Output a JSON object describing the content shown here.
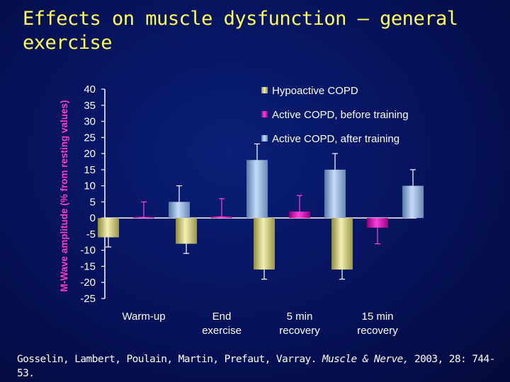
{
  "slide": {
    "title": "Effects on muscle dysfunction – general exercise",
    "citation_authors": "Gosselin, Lambert, Poulain, Martin, Prefaut, Varray.",
    "citation_journal": "Muscle & Nerve,",
    "citation_rest": " 2003, 28: 744-53."
  },
  "colors": {
    "hypoactive": "#e8e49a",
    "active_before": "#e600c8",
    "active_after": "#a9c6ec",
    "axis": "#ffffff",
    "error_bar": "#ffffff"
  },
  "chart_data": {
    "type": "bar",
    "title": "",
    "xlabel": "",
    "ylabel": "M-Wave amplitude (% from resting values)",
    "ylim": [
      -25,
      40
    ],
    "yticks": [
      "40",
      "35",
      "30",
      "25",
      "20",
      "15",
      "10",
      "5",
      "0",
      "-5",
      "-10",
      "-15",
      "-20",
      "-25"
    ],
    "categories": [
      {
        "line1": "Warm-up",
        "line2": ""
      },
      {
        "line1": "End",
        "line2": "exercise"
      },
      {
        "line1": "5 min",
        "line2": "recovery"
      },
      {
        "line1": "15 min",
        "line2": "recovery"
      }
    ],
    "legend_position": "top-right",
    "series": [
      {
        "name": "Hypoactive COPD",
        "values": [
          -6,
          -8,
          -16,
          -16
        ],
        "errors": [
          3,
          3,
          3,
          3
        ]
      },
      {
        "name": "Active COPD, before training",
        "values": [
          0,
          0.5,
          2,
          -3
        ],
        "errors": [
          5,
          5.5,
          5,
          5
        ]
      },
      {
        "name": "Active COPD, after training",
        "values": [
          5,
          18,
          15,
          10
        ],
        "errors": [
          5,
          5,
          5,
          5
        ]
      }
    ]
  }
}
